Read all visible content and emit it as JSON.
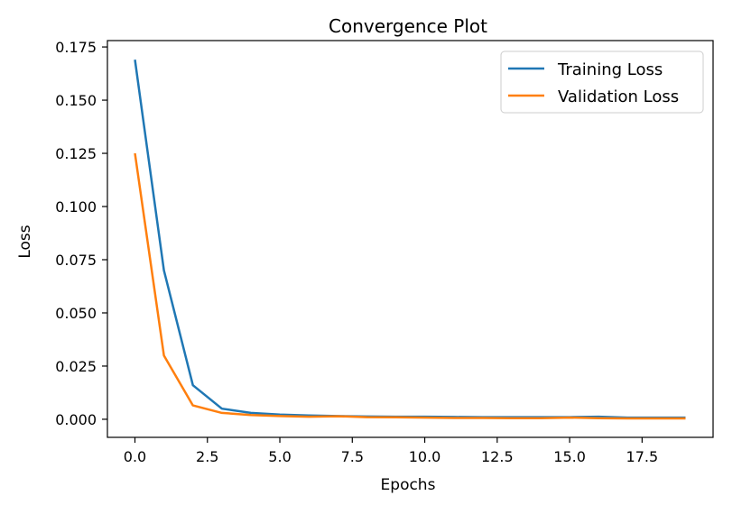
{
  "chart_data": {
    "type": "line",
    "title": "Convergence Plot",
    "xlabel": "Epochs",
    "ylabel": "Loss",
    "xlim": [
      -0.95,
      19.95
    ],
    "ylim": [
      -0.0085,
      0.178
    ],
    "xticks": [
      0.0,
      2.5,
      5.0,
      7.5,
      10.0,
      12.5,
      15.0,
      17.5
    ],
    "xtick_labels": [
      "0.0",
      "2.5",
      "5.0",
      "7.5",
      "10.0",
      "12.5",
      "15.0",
      "17.5"
    ],
    "yticks": [
      0.0,
      0.025,
      0.05,
      0.075,
      0.1,
      0.125,
      0.15,
      0.175
    ],
    "ytick_labels": [
      "0.000",
      "0.025",
      "0.050",
      "0.075",
      "0.100",
      "0.125",
      "0.150",
      "0.175"
    ],
    "grid": false,
    "legend_position": "top-right",
    "x": [
      0,
      1,
      2,
      3,
      4,
      5,
      6,
      7,
      8,
      9,
      10,
      11,
      12,
      13,
      14,
      15,
      16,
      17,
      18,
      19
    ],
    "series": [
      {
        "name": "Training Loss",
        "color": "#1f77b4",
        "values": [
          0.169,
          0.07,
          0.016,
          0.005,
          0.003,
          0.0022,
          0.0018,
          0.0015,
          0.0013,
          0.0012,
          0.0012,
          0.0011,
          0.001,
          0.001,
          0.001,
          0.001,
          0.0012,
          0.0008,
          0.0008,
          0.0008
        ]
      },
      {
        "name": "Validation Loss",
        "color": "#ff7f0e",
        "values": [
          0.125,
          0.03,
          0.0065,
          0.003,
          0.002,
          0.0015,
          0.0012,
          0.0014,
          0.001,
          0.0009,
          0.0008,
          0.0006,
          0.0006,
          0.0005,
          0.0005,
          0.0008,
          0.0005,
          0.0004,
          0.0004,
          0.0004
        ]
      }
    ]
  }
}
